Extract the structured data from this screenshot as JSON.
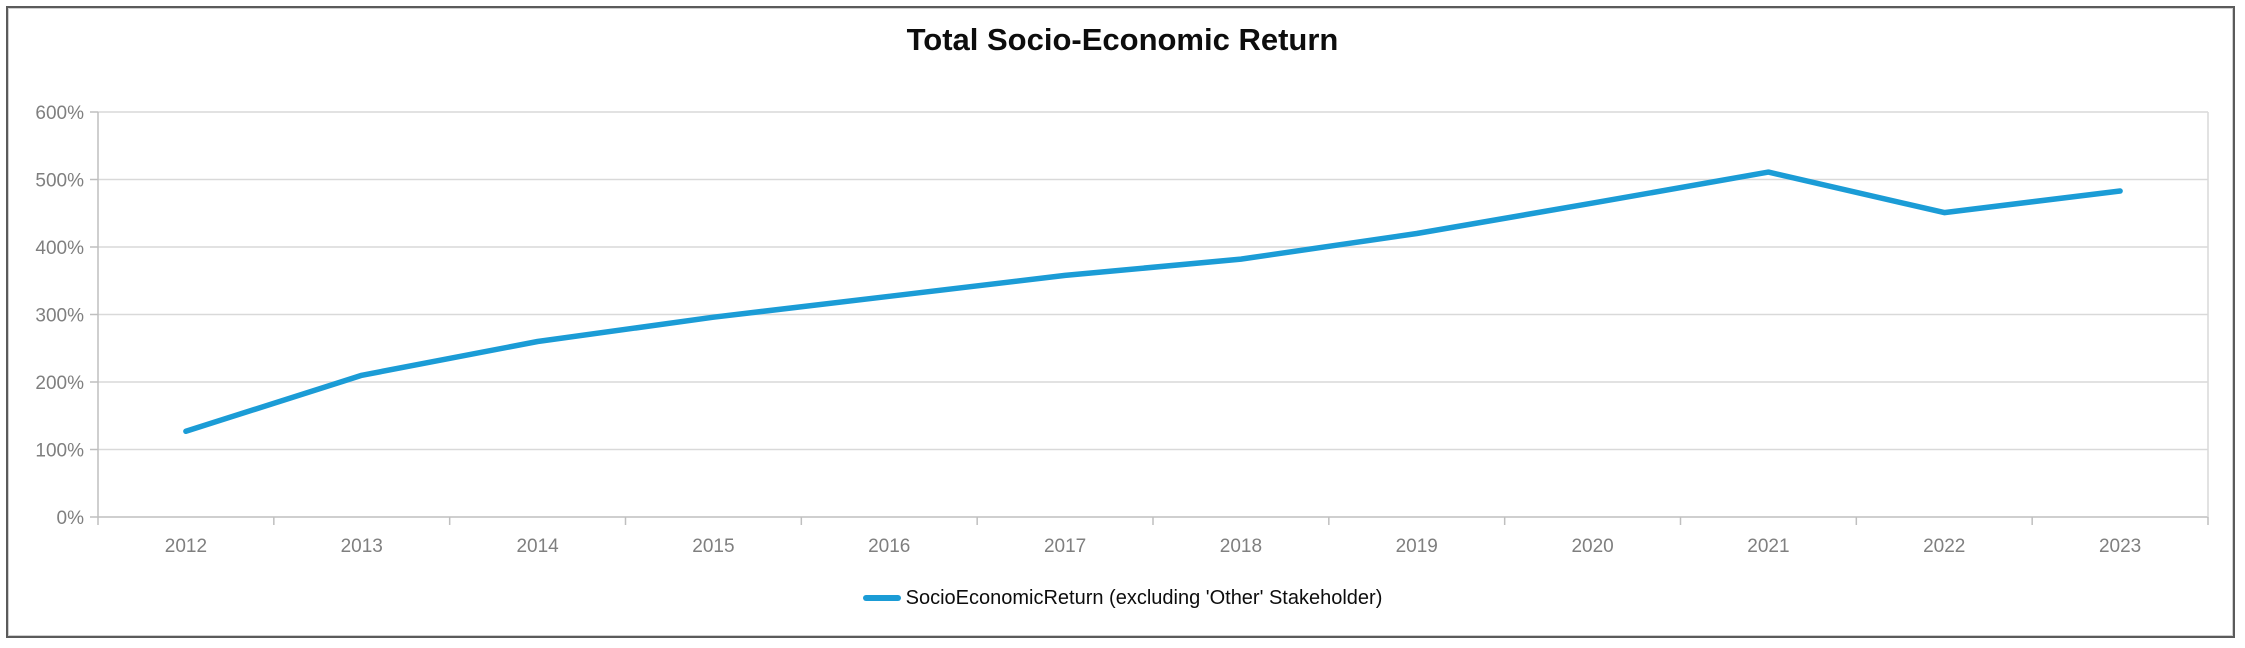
{
  "title": "Total Socio-Economic Return",
  "legend": {
    "label": "SocioEconomicReturn (excluding 'Other' Stakeholder)"
  },
  "colors": {
    "line": "#1b9cd6",
    "grid": "#d9d9d9",
    "axis": "#bfbfbf",
    "tick_label": "#7f7f7f",
    "title": "#0d0d0d",
    "border": "#5b5b5b"
  },
  "chart_data": {
    "type": "line",
    "title": "Total Socio-Economic Return",
    "categories": [
      "2012",
      "2013",
      "2014",
      "2015",
      "2016",
      "2017",
      "2018",
      "2019",
      "2020",
      "2021",
      "2022",
      "2023"
    ],
    "series": [
      {
        "name": "SocioEconomicReturn (excluding 'Other' Stakeholder)",
        "values": [
          127,
          210,
          260,
          296,
          327,
          358,
          382,
          420,
          465,
          511,
          451,
          483
        ]
      }
    ],
    "xlabel": "",
    "ylabel": "",
    "ylim": [
      0,
      600
    ],
    "y_ticks": [
      "0%",
      "100%",
      "200%",
      "300%",
      "400%",
      "500%",
      "600%"
    ],
    "grid": "horizontal",
    "legend_position": "bottom"
  }
}
